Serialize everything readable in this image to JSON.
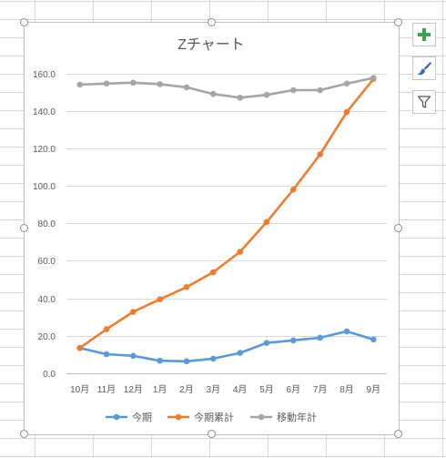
{
  "toolbar": {
    "add_element_icon": "plus-icon",
    "style_icon": "brush-icon",
    "filter_icon": "funnel-icon"
  },
  "chart_data": {
    "type": "line",
    "title": "Zチャート",
    "xlabel": "",
    "ylabel": "",
    "categories": [
      "10月",
      "11月",
      "12月",
      "1月",
      "2月",
      "3月",
      "4月",
      "5月",
      "6月",
      "7月",
      "8月",
      "9月"
    ],
    "ylim": [
      0,
      160
    ],
    "yticks": [
      "0.0",
      "20.0",
      "40.0",
      "60.0",
      "80.0",
      "100.0",
      "120.0",
      "140.0",
      "160.0"
    ],
    "grid": true,
    "legend": "bottom",
    "series": [
      {
        "name": "今期",
        "color": "#5b9bd5",
        "values": [
          13.5,
          10.2,
          9.3,
          6.7,
          6.4,
          7.8,
          10.9,
          16.2,
          17.6,
          19.0,
          22.4,
          18.0
        ]
      },
      {
        "name": "今期累計",
        "color": "#ed7d31",
        "values": [
          13.5,
          23.5,
          32.8,
          39.5,
          46.0,
          53.9,
          64.8,
          80.7,
          98.0,
          116.8,
          139.3,
          157.0
        ]
      },
      {
        "name": "移動年計",
        "color": "#a5a5a5",
        "values": [
          154.0,
          154.5,
          155.0,
          154.2,
          152.5,
          149.0,
          147.0,
          148.5,
          151.0,
          151.0,
          154.5,
          157.5
        ]
      }
    ]
  }
}
